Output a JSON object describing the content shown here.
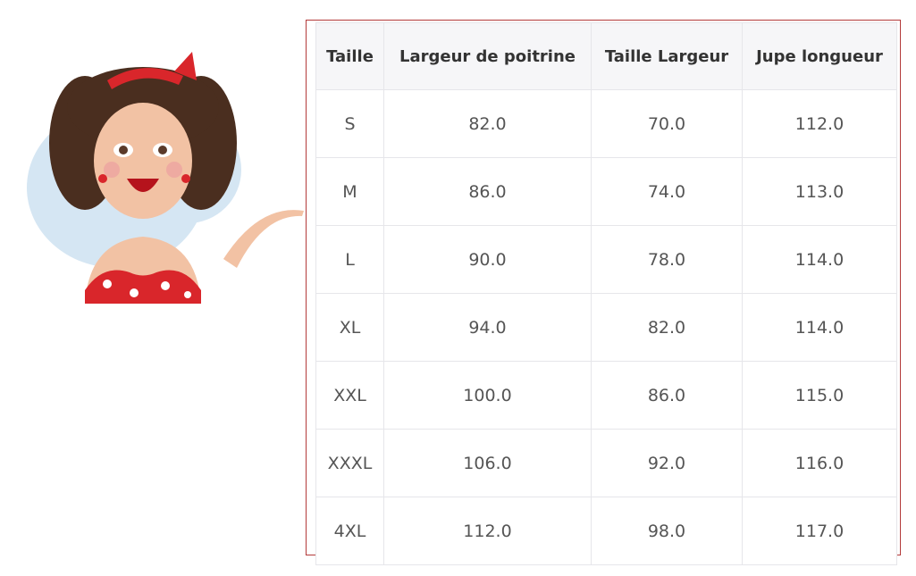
{
  "headers": [
    "Taille",
    "Largeur de poitrine",
    "Taille Largeur",
    "Jupe longueur"
  ],
  "rows": [
    [
      "S",
      "82.0",
      "70.0",
      "112.0"
    ],
    [
      "M",
      "86.0",
      "74.0",
      "113.0"
    ],
    [
      "L",
      "90.0",
      "78.0",
      "114.0"
    ],
    [
      "XL",
      "94.0",
      "82.0",
      "114.0"
    ],
    [
      "XXL",
      "100.0",
      "86.0",
      "115.0"
    ],
    [
      "XXXL",
      "106.0",
      "92.0",
      "116.0"
    ],
    [
      "4XL",
      "112.0",
      "98.0",
      "117.0"
    ]
  ],
  "colors": {
    "frame_border": "#b33a3a",
    "header_bg": "#f6f6f8",
    "grid": "#e6e6ea"
  }
}
